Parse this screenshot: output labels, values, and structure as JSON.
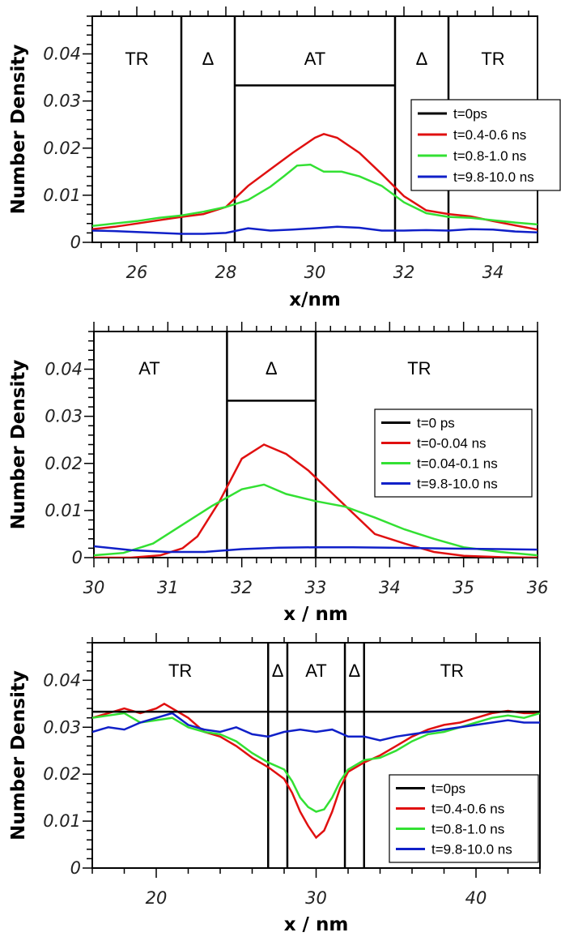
{
  "chart_data": [
    {
      "type": "line",
      "xlabel": "x/nm",
      "ylabel": "Number Density",
      "xlim": [
        25,
        35
      ],
      "ylim": [
        0,
        0.048
      ],
      "x_ticks": [
        26,
        28,
        30,
        32,
        34
      ],
      "y_ticks": [
        0,
        0.01,
        0.02,
        0.03,
        0.04
      ],
      "y_tick_labels": [
        "0",
        "0.01",
        "0.02",
        "0.03",
        "0.04"
      ],
      "legend_position": "right",
      "regions": [
        {
          "label": "TR",
          "x": 26.0
        },
        {
          "label": "Δ",
          "x": 27.6
        },
        {
          "label": "AT",
          "x": 30.0
        },
        {
          "label": "Δ",
          "x": 32.4
        },
        {
          "label": "TR",
          "x": 34.0
        }
      ],
      "region_boundaries": [
        27,
        28.2,
        31.8,
        33
      ],
      "step_profile": [
        [
          27,
          0.048
        ],
        [
          27,
          0.048
        ],
        [
          28.2,
          0.048
        ],
        [
          28.2,
          0.0333
        ],
        [
          31.8,
          0.0333
        ],
        [
          31.8,
          0.048
        ]
      ],
      "series": [
        {
          "name": "t=0ps",
          "color": "#000000",
          "x": [
            28.2,
            31.8
          ],
          "y": [
            0.0333,
            0.0333
          ]
        },
        {
          "name": "t=0.4-0.6 ns",
          "color": "#e01010",
          "x": [
            25,
            25.5,
            26,
            26.5,
            27,
            27.5,
            28,
            28.5,
            29,
            29.5,
            30,
            30.2,
            30.5,
            31,
            31.5,
            32,
            32.5,
            33,
            33.5,
            34,
            34.5,
            35
          ],
          "y": [
            0.0028,
            0.0033,
            0.004,
            0.0047,
            0.0054,
            0.006,
            0.0075,
            0.012,
            0.0155,
            0.019,
            0.0222,
            0.023,
            0.0222,
            0.019,
            0.0145,
            0.0098,
            0.0068,
            0.006,
            0.0055,
            0.0045,
            0.0036,
            0.0027
          ]
        },
        {
          "name": "t=0.8-1.0 ns",
          "color": "#33e033",
          "x": [
            25,
            25.5,
            26,
            26.5,
            27,
            27.5,
            28,
            28.5,
            29,
            29.3,
            29.6,
            29.9,
            30.2,
            30.6,
            31,
            31.5,
            32,
            32.5,
            33,
            33.5,
            34,
            34.5,
            35
          ],
          "y": [
            0.0035,
            0.004,
            0.0045,
            0.0052,
            0.0057,
            0.0065,
            0.0075,
            0.009,
            0.0118,
            0.014,
            0.0163,
            0.0165,
            0.015,
            0.015,
            0.014,
            0.012,
            0.0085,
            0.0062,
            0.0054,
            0.0052,
            0.0047,
            0.0042,
            0.0038
          ]
        },
        {
          "name": "t=9.8-10.0 ns",
          "color": "#1020c8",
          "x": [
            25,
            25.5,
            26,
            26.5,
            27,
            27.5,
            28,
            28.5,
            29,
            29.5,
            30,
            30.5,
            31,
            31.5,
            32,
            32.5,
            33,
            33.5,
            34,
            34.5,
            35
          ],
          "y": [
            0.0025,
            0.0024,
            0.0022,
            0.002,
            0.0018,
            0.0018,
            0.002,
            0.003,
            0.0025,
            0.0027,
            0.003,
            0.0033,
            0.0031,
            0.0025,
            0.0025,
            0.0026,
            0.0025,
            0.0028,
            0.0027,
            0.0023,
            0.0021
          ]
        }
      ]
    },
    {
      "type": "line",
      "xlabel": "x / nm",
      "ylabel": "Number Density",
      "xlim": [
        30,
        36
      ],
      "ylim": [
        0,
        0.048
      ],
      "x_ticks": [
        30,
        31,
        32,
        33,
        34,
        35,
        36
      ],
      "y_ticks": [
        0,
        0.01,
        0.02,
        0.03,
        0.04
      ],
      "y_tick_labels": [
        "0",
        "0.01",
        "0.02",
        "0.03",
        "0.04"
      ],
      "legend_position": "right",
      "regions": [
        {
          "label": "AT",
          "x": 30.75
        },
        {
          "label": "Δ",
          "x": 32.4
        },
        {
          "label": "TR",
          "x": 34.4
        }
      ],
      "region_boundaries": [
        31.8,
        33
      ],
      "step_profile": [
        [
          31.8,
          0.048
        ],
        [
          31.8,
          0.0333
        ],
        [
          33,
          0.0333
        ],
        [
          33,
          0.048
        ]
      ],
      "series": [
        {
          "name": "t=0 ps",
          "color": "#000000",
          "x": [
            31.8,
            33
          ],
          "y": [
            0.0333,
            0.0333
          ]
        },
        {
          "name": "t=0-0.04 ns",
          "color": "#e01010",
          "x": [
            30,
            30.5,
            30.9,
            31.2,
            31.4,
            31.7,
            32.0,
            32.3,
            32.6,
            32.9,
            33.2,
            33.5,
            33.8,
            34.2,
            34.6,
            35,
            35.5,
            36
          ],
          "y": [
            0.0,
            0.0,
            0.0005,
            0.002,
            0.0045,
            0.012,
            0.021,
            0.024,
            0.022,
            0.0185,
            0.014,
            0.0095,
            0.005,
            0.003,
            0.0012,
            0.0004,
            0.0001,
            0.0
          ]
        },
        {
          "name": "t=0.04-0.1 ns",
          "color": "#33e033",
          "x": [
            30,
            30.4,
            30.8,
            31.2,
            31.6,
            32.0,
            32.3,
            32.6,
            33.0,
            33.4,
            33.8,
            34.2,
            34.6,
            35,
            35.5,
            36
          ],
          "y": [
            0.0005,
            0.001,
            0.003,
            0.007,
            0.011,
            0.0145,
            0.0155,
            0.0135,
            0.012,
            0.0108,
            0.0085,
            0.006,
            0.004,
            0.0022,
            0.0012,
            0.0005
          ]
        },
        {
          "name": "t=9.8-10.0 ns",
          "color": "#1020c8",
          "x": [
            30,
            30.5,
            31,
            31.5,
            32,
            32.5,
            33,
            33.5,
            34,
            34.5,
            35,
            35.5,
            36
          ],
          "y": [
            0.0024,
            0.0016,
            0.0012,
            0.0012,
            0.0018,
            0.0021,
            0.0022,
            0.0022,
            0.0021,
            0.002,
            0.0019,
            0.0018,
            0.0017
          ]
        }
      ]
    },
    {
      "type": "line",
      "xlabel": "x / nm",
      "ylabel": "Number Density",
      "xlim": [
        16,
        44
      ],
      "ylim": [
        0,
        0.048
      ],
      "x_ticks": [
        20,
        30,
        40
      ],
      "y_ticks": [
        0,
        0.01,
        0.02,
        0.03,
        0.04
      ],
      "y_tick_labels": [
        "0",
        "0.01",
        "0.02",
        "0.03",
        "0.04"
      ],
      "legend_position": "bottom-right",
      "regions": [
        {
          "label": "TR",
          "x": 21.5
        },
        {
          "label": "Δ",
          "x": 27.6
        },
        {
          "label": "AT",
          "x": 30.0
        },
        {
          "label": "Δ",
          "x": 32.4
        },
        {
          "label": "TR",
          "x": 38.5
        }
      ],
      "region_boundaries": [
        27,
        28.2,
        31.8,
        33
      ],
      "step_profile": [
        [
          16,
          0.0333
        ],
        [
          27,
          0.0333
        ],
        [
          27,
          0.048
        ],
        [
          28.2,
          0.048
        ],
        [
          31.8,
          0.048
        ],
        [
          33,
          0.048
        ],
        [
          33,
          0.0333
        ],
        [
          44,
          0.0333
        ]
      ],
      "series": [
        {
          "name": "t=0ps",
          "color": "#000000",
          "x": [
            16,
            27,
            33,
            44
          ],
          "y": [
            0.0333,
            0.0333,
            0.0333,
            0.0333
          ]
        },
        {
          "name": "t=0.4-0.6 ns",
          "color": "#e01010",
          "x": [
            16,
            17,
            18,
            19,
            20,
            20.5,
            21,
            22,
            23,
            24,
            25,
            26,
            27,
            28,
            28.5,
            29,
            29.5,
            30,
            30.5,
            31,
            31.5,
            32,
            33,
            34,
            35,
            36,
            37,
            38,
            39,
            40,
            41,
            42,
            43,
            44
          ],
          "y": [
            0.032,
            0.033,
            0.034,
            0.033,
            0.034,
            0.035,
            0.034,
            0.032,
            0.029,
            0.028,
            0.026,
            0.0235,
            0.0215,
            0.019,
            0.016,
            0.012,
            0.009,
            0.0065,
            0.008,
            0.012,
            0.017,
            0.0205,
            0.0225,
            0.024,
            0.026,
            0.028,
            0.0295,
            0.0305,
            0.031,
            0.032,
            0.033,
            0.0335,
            0.033,
            0.033
          ]
        },
        {
          "name": "t=0.8-1.0 ns",
          "color": "#33e033",
          "x": [
            16,
            17,
            18,
            19,
            20,
            21,
            22,
            23,
            24,
            25,
            26,
            27,
            28,
            28.5,
            29,
            29.5,
            30,
            30.5,
            31,
            31.5,
            32,
            33,
            34,
            35,
            36,
            37,
            38,
            39,
            40,
            41,
            42,
            43,
            44
          ],
          "y": [
            0.032,
            0.0325,
            0.033,
            0.031,
            0.0315,
            0.032,
            0.03,
            0.029,
            0.0285,
            0.027,
            0.0245,
            0.0225,
            0.021,
            0.0185,
            0.015,
            0.013,
            0.012,
            0.0125,
            0.015,
            0.0185,
            0.021,
            0.023,
            0.0235,
            0.025,
            0.027,
            0.0285,
            0.029,
            0.03,
            0.031,
            0.032,
            0.0325,
            0.032,
            0.033
          ]
        },
        {
          "name": "t=9.8-10.0 ns",
          "color": "#1020c8",
          "x": [
            16,
            17,
            18,
            19,
            20,
            21,
            22,
            23,
            24,
            25,
            26,
            27,
            28,
            29,
            30,
            31,
            32,
            33,
            34,
            35,
            36,
            37,
            38,
            39,
            40,
            41,
            42,
            43,
            44
          ],
          "y": [
            0.029,
            0.03,
            0.0295,
            0.031,
            0.032,
            0.033,
            0.0305,
            0.0295,
            0.029,
            0.03,
            0.0285,
            0.028,
            0.029,
            0.0295,
            0.029,
            0.0295,
            0.028,
            0.028,
            0.0272,
            0.028,
            0.0285,
            0.029,
            0.0295,
            0.03,
            0.0305,
            0.031,
            0.0315,
            0.031,
            0.031
          ]
        }
      ]
    }
  ]
}
